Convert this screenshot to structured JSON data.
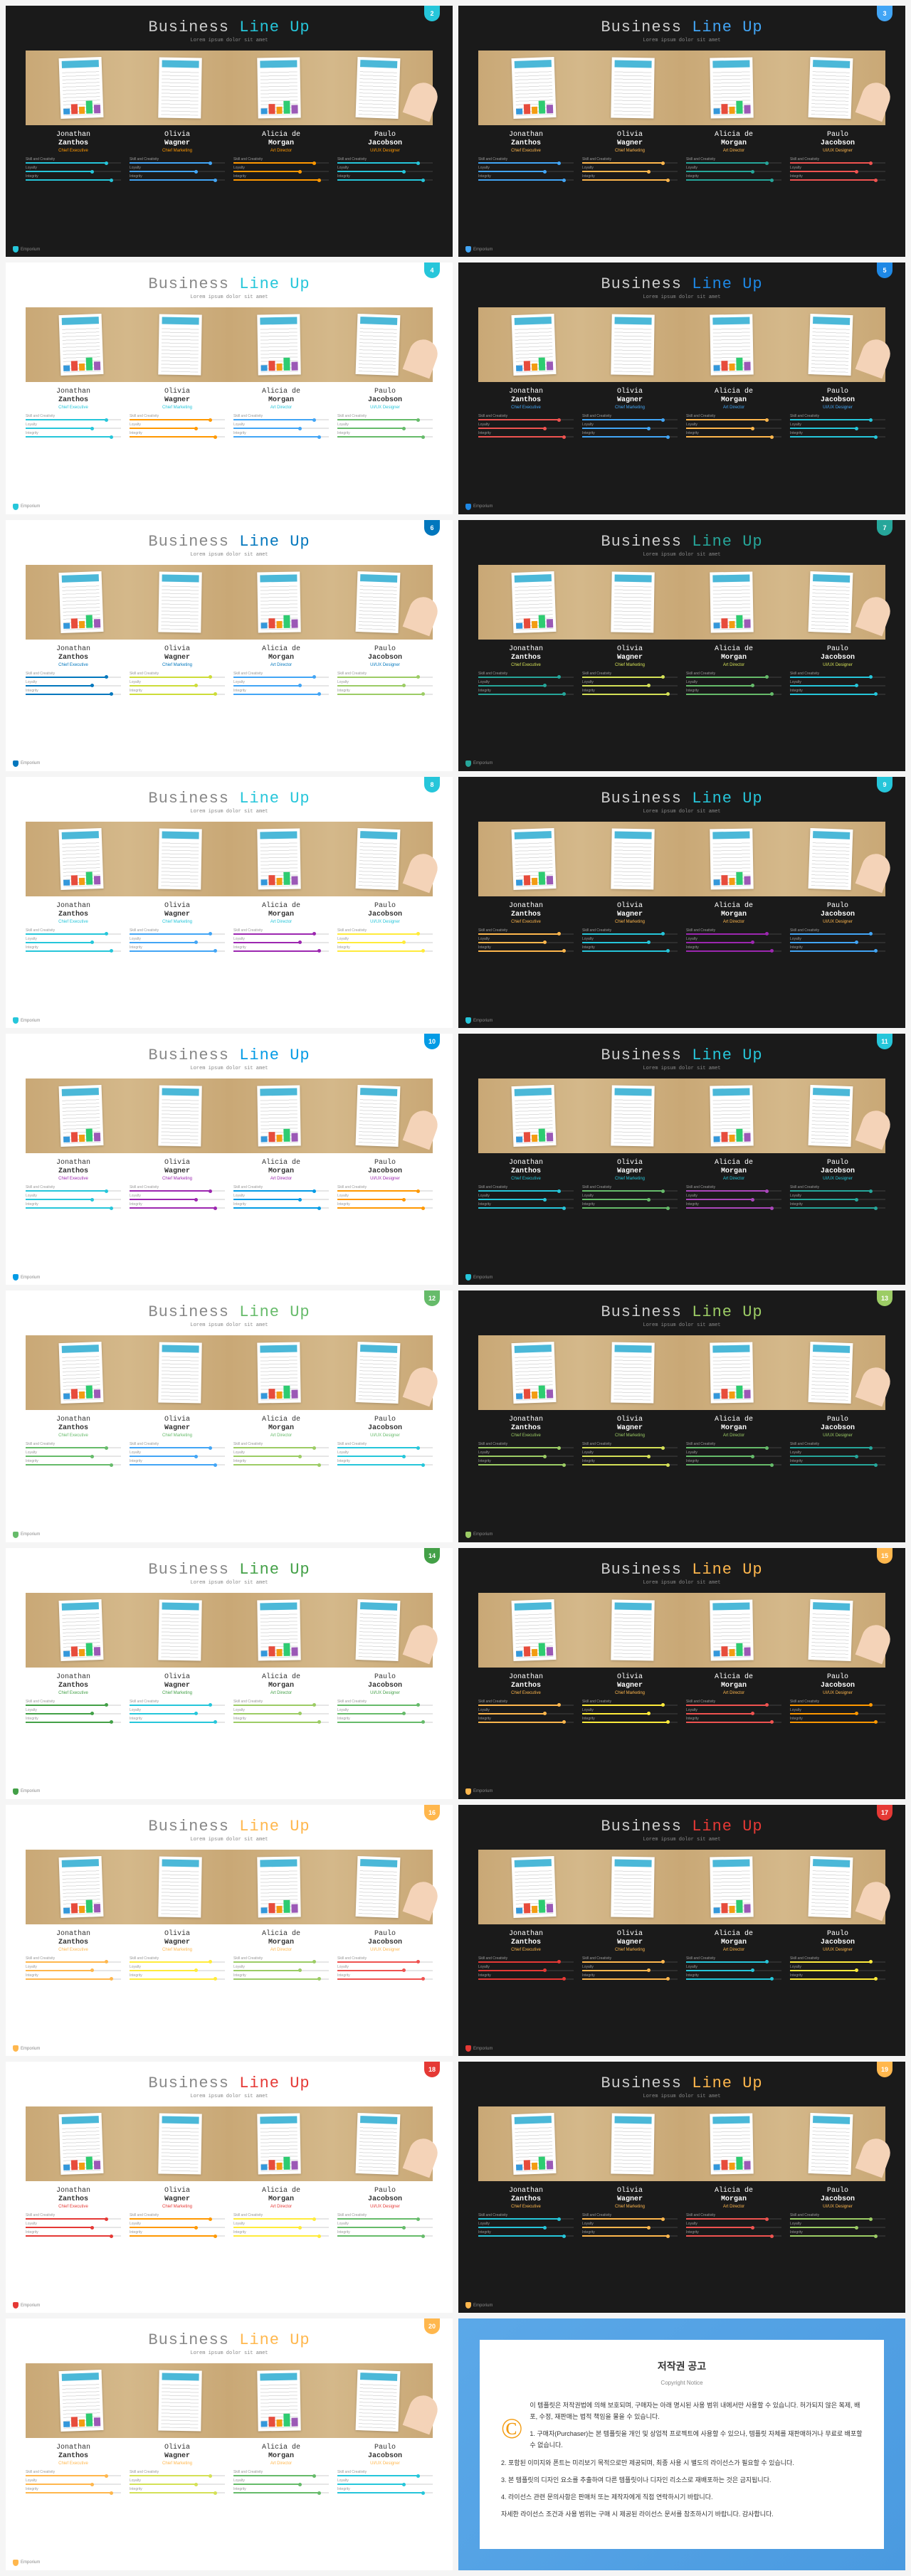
{
  "title_w1": "Business",
  "title_w2": "Line Up",
  "subtitle": "Lorem ipsum dolor sit amet",
  "footer": "Emporium",
  "people": [
    {
      "first": "Jonathan",
      "last": "Zanthos",
      "role": "Chief Executive"
    },
    {
      "first": "Olivia",
      "last": "Wagner",
      "role": "Chief Marketing"
    },
    {
      "first": "Alicia de",
      "last": "Morgan",
      "role": "Art Director"
    },
    {
      "first": "Paulo",
      "last": "Jacobson",
      "role": "UI/UX Designer"
    }
  ],
  "skills": [
    {
      "label": "Skill and Creativity",
      "val": 85
    },
    {
      "label": "Loyalty",
      "val": 70
    },
    {
      "label": "Integrity",
      "val": 90
    }
  ],
  "slides": [
    {
      "n": 2,
      "bg": "dark",
      "accent": "#26c6da",
      "c": [
        "#26c6da",
        "#42a5f5",
        "#ff9800",
        "#26c6da"
      ],
      "role": "#ff9800"
    },
    {
      "n": 3,
      "bg": "dark",
      "accent": "#42a5f5",
      "c": [
        "#42a5f5",
        "#ffb74d",
        "#26a69a",
        "#ef5350"
      ],
      "role": "#ffb74d"
    },
    {
      "n": 4,
      "bg": "light",
      "accent": "#26c6da",
      "c": [
        "#26c6da",
        "#ff9800",
        "#42a5f5",
        "#66bb6a"
      ],
      "role": "#26c6da"
    },
    {
      "n": 5,
      "bg": "dark",
      "accent": "#1e88e5",
      "c": [
        "#ef5350",
        "#42a5f5",
        "#ffb74d",
        "#26c6da"
      ],
      "role": "#42a5f5"
    },
    {
      "n": 6,
      "bg": "light",
      "accent": "#0277bd",
      "c": [
        "#0277bd",
        "#cddc39",
        "#42a5f5",
        "#9ccc65"
      ],
      "role": "#0277bd"
    },
    {
      "n": 7,
      "bg": "dark",
      "accent": "#26a69a",
      "c": [
        "#26a69a",
        "#d4e157",
        "#66bb6a",
        "#26c6da"
      ],
      "role": "#d4e157"
    },
    {
      "n": 8,
      "bg": "light",
      "accent": "#26c6da",
      "c": [
        "#26c6da",
        "#42a5f5",
        "#9c27b0",
        "#ffeb3b"
      ],
      "role": "#26c6da"
    },
    {
      "n": 9,
      "bg": "dark",
      "accent": "#26c6da",
      "c": [
        "#ffb74d",
        "#26c6da",
        "#9c27b0",
        "#42a5f5"
      ],
      "role": "#ffb74d"
    },
    {
      "n": 10,
      "bg": "light",
      "accent": "#039be5",
      "c": [
        "#26c6da",
        "#9c27b0",
        "#039be5",
        "#ff9800"
      ],
      "role": "#9c27b0"
    },
    {
      "n": 11,
      "bg": "dark",
      "accent": "#26c6da",
      "c": [
        "#26c6da",
        "#66bb6a",
        "#ab47bc",
        "#26a69a"
      ],
      "role": "#26c6da"
    },
    {
      "n": 12,
      "bg": "light",
      "accent": "#66bb6a",
      "c": [
        "#66bb6a",
        "#42a5f5",
        "#9ccc65",
        "#26c6da"
      ],
      "role": "#66bb6a"
    },
    {
      "n": 13,
      "bg": "dark",
      "accent": "#9ccc65",
      "c": [
        "#9ccc65",
        "#d4e157",
        "#66bb6a",
        "#26a69a"
      ],
      "role": "#9ccc65"
    },
    {
      "n": 14,
      "bg": "light",
      "accent": "#43a047",
      "c": [
        "#43a047",
        "#26c6da",
        "#9ccc65",
        "#66bb6a"
      ],
      "role": "#43a047"
    },
    {
      "n": 15,
      "bg": "dark",
      "accent": "#ffb74d",
      "c": [
        "#ffb74d",
        "#ffeb3b",
        "#ef5350",
        "#ff9800"
      ],
      "role": "#ffb74d"
    },
    {
      "n": 16,
      "bg": "light",
      "accent": "#ffb74d",
      "c": [
        "#ffb74d",
        "#ffeb3b",
        "#9ccc65",
        "#ef5350"
      ],
      "role": "#ffb74d"
    },
    {
      "n": 17,
      "bg": "dark",
      "accent": "#e53935",
      "c": [
        "#e53935",
        "#ffb74d",
        "#26c6da",
        "#ffeb3b"
      ],
      "role": "#ffb74d"
    },
    {
      "n": 18,
      "bg": "light",
      "accent": "#e53935",
      "c": [
        "#e53935",
        "#ff9800",
        "#ffeb3b",
        "#66bb6a"
      ],
      "role": "#e53935"
    },
    {
      "n": 19,
      "bg": "dark",
      "accent": "#ffb74d",
      "c": [
        "#26c6da",
        "#ffb74d",
        "#ef5350",
        "#9ccc65"
      ],
      "role": "#ffb74d"
    },
    {
      "n": 20,
      "bg": "light",
      "accent": "#ffb74d",
      "c": [
        "#ffb74d",
        "#d4e157",
        "#66bb6a",
        "#26c6da"
      ],
      "role": "#ffb74d"
    }
  ],
  "notice": {
    "title": "저작권 공고",
    "sub": "Copyright Notice",
    "lines": [
      "이 템플릿은 저작권법에 의해 보호되며, 구매자는 아래 명시된 사용 범위 내에서만 사용할 수 있습니다. 허가되지 않은 복제, 배포, 수정, 재판매는 법적 책임을 물을 수 있습니다.",
      "1. 구매자(Purchaser)는 본 템플릿을 개인 및 상업적 프로젝트에 사용할 수 있으나, 템플릿 자체를 재판매하거나 무료로 배포할 수 없습니다.",
      "2. 포함된 이미지와 폰트는 미리보기 목적으로만 제공되며, 최종 사용 시 별도의 라이선스가 필요할 수 있습니다.",
      "3. 본 템플릿의 디자인 요소를 추출하여 다른 템플릿이나 디자인 리소스로 재배포하는 것은 금지됩니다.",
      "4. 라이선스 관련 문의사항은 판매처 또는 제작자에게 직접 연락하시기 바랍니다.",
      "자세한 라이선스 조건과 사용 범위는 구매 시 제공된 라이선스 문서를 참조하시기 바랍니다. 감사합니다."
    ]
  }
}
